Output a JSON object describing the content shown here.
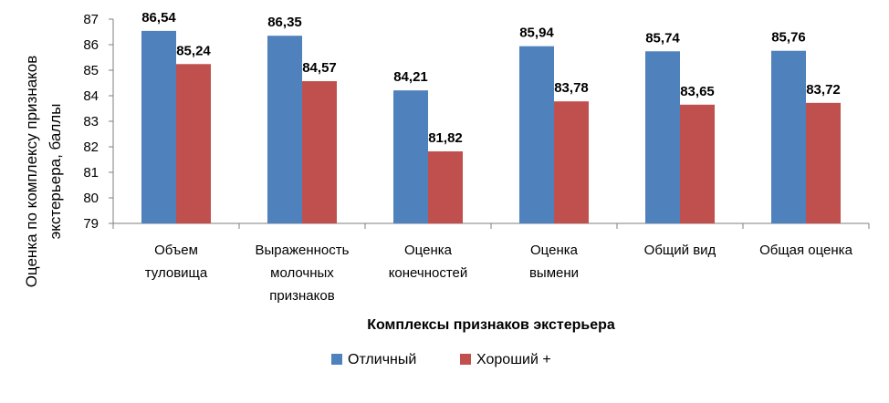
{
  "chart_data": {
    "type": "bar",
    "categories": [
      [
        "Объем",
        "туловища"
      ],
      [
        "Выраженность",
        "молочных",
        "признаков"
      ],
      [
        "Оценка",
        "конечностей"
      ],
      [
        "Оценка",
        "вымени"
      ],
      [
        "Общий вид"
      ],
      [
        "Общая оценка"
      ]
    ],
    "series": [
      {
        "name": "Отличный",
        "values": [
          86.54,
          86.35,
          84.21,
          85.94,
          85.74,
          85.76
        ],
        "color": "#4F81BD"
      },
      {
        "name": "Хороший +",
        "values": [
          85.24,
          84.57,
          81.82,
          83.78,
          83.65,
          83.72
        ],
        "color": "#C0504D"
      }
    ],
    "data_labels": [
      [
        "86,54",
        "86,35",
        "84,21",
        "85,94",
        "85,74",
        "85,76"
      ],
      [
        "85,24",
        "84,57",
        "81,82",
        "83,78",
        "83,65",
        "83,72"
      ]
    ],
    "yticks": [
      "79",
      "80",
      "81",
      "82",
      "83",
      "84",
      "85",
      "86",
      "87"
    ],
    "ylim": [
      79,
      87
    ],
    "ylabel_lines": [
      "Оценка по комплексу признаков",
      "экстерьера, баллы"
    ],
    "xlabel": "Комплексы признаков экстерьера",
    "legend_position": "bottom",
    "grid": false
  }
}
